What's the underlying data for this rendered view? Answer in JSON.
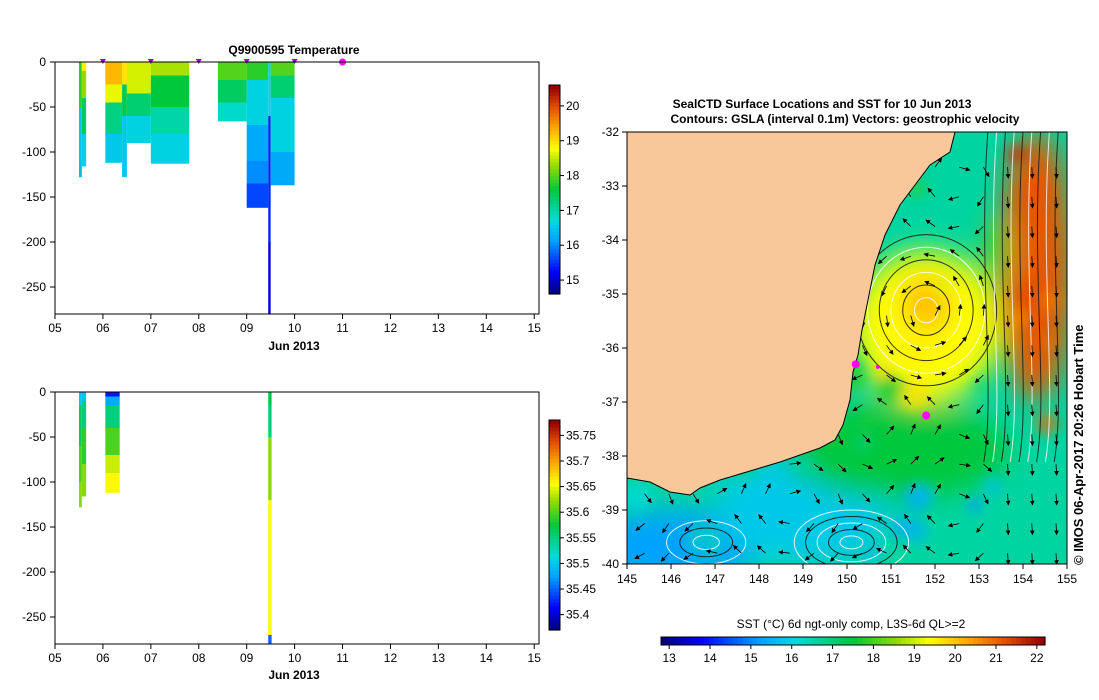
{
  "chart_data": [
    {
      "type": "heatmap",
      "title": "Q9900595  Temperature",
      "xlabel": "Jun 2013",
      "ylabel": "",
      "x_ticks": [
        "05",
        "06",
        "07",
        "08",
        "09",
        "10",
        "11",
        "12",
        "13",
        "14",
        "15"
      ],
      "xlim": [
        5,
        15.1
      ],
      "ylim": [
        -280,
        0
      ],
      "y_ticks": [
        0,
        -50,
        -100,
        -150,
        -200,
        -250
      ],
      "y_tick_labels": [
        "0",
        "-50",
        "-100",
        "-150",
        "-200",
        "-250"
      ],
      "profile_markers_day": [
        6.0,
        7.0,
        8.0,
        9.0,
        10.0
      ],
      "current_marker_day": 11.0,
      "colorbar": {
        "range": [
          14.6,
          20.6
        ],
        "ticks": [
          15,
          16,
          17,
          18,
          19,
          20
        ],
        "tick_labels": [
          "15",
          "16",
          "17",
          "18",
          "19",
          "20"
        ]
      },
      "profiles": [
        {
          "x": [
            5.5,
            5.56
          ],
          "segments": [
            [
              0,
              -50,
              17.8
            ],
            [
              -50,
              -110,
              16.5
            ],
            [
              -110,
              -128,
              16.4
            ]
          ]
        },
        {
          "x": [
            5.56,
            5.65
          ],
          "segments": [
            [
              0,
              -10,
              18.9
            ],
            [
              -10,
              -40,
              18.3
            ],
            [
              -40,
              -80,
              17.4
            ],
            [
              -80,
              -116,
              16.6
            ]
          ]
        },
        {
          "x": [
            6.05,
            6.4
          ],
          "segments": [
            [
              0,
              -25,
              19.3
            ],
            [
              -25,
              -45,
              18.7
            ],
            [
              -45,
              -80,
              17.2
            ],
            [
              -80,
              -112,
              16.5
            ]
          ]
        },
        {
          "x": [
            6.4,
            6.5
          ],
          "segments": [
            [
              0,
              -25,
              19.0
            ],
            [
              -25,
              -60,
              17.5
            ],
            [
              -60,
              -128,
              16.5
            ]
          ]
        },
        {
          "x": [
            6.5,
            7.0
          ],
          "segments": [
            [
              0,
              -35,
              18.6
            ],
            [
              -35,
              -60,
              17.3
            ],
            [
              -60,
              -90,
              16.6
            ]
          ]
        },
        {
          "x": [
            7.0,
            7.8
          ],
          "segments": [
            [
              0,
              -15,
              18.4
            ],
            [
              -15,
              -50,
              17.6
            ],
            [
              -50,
              -80,
              17.0
            ],
            [
              -80,
              -113,
              16.6
            ]
          ]
        },
        {
          "x": [
            8.4,
            9.0
          ],
          "segments": [
            [
              0,
              -20,
              18.0
            ],
            [
              -20,
              -45,
              17.4
            ],
            [
              -45,
              -66,
              16.8
            ]
          ]
        },
        {
          "x": [
            9.0,
            9.45
          ],
          "segments": [
            [
              0,
              -20,
              17.8
            ],
            [
              -20,
              -70,
              16.6
            ],
            [
              -70,
              -110,
              16.2
            ],
            [
              -110,
              -135,
              16.0
            ],
            [
              -135,
              -162,
              15.6
            ]
          ]
        },
        {
          "x": [
            9.45,
            9.5
          ],
          "segments": [
            [
              0,
              -60,
              16.6
            ],
            [
              -60,
              -200,
              15.4
            ],
            [
              -200,
              -280,
              15.0
            ]
          ]
        },
        {
          "x": [
            9.5,
            10.0
          ],
          "segments": [
            [
              0,
              -15,
              18.0
            ],
            [
              -15,
              -40,
              17.3
            ],
            [
              -40,
              -100,
              16.6
            ],
            [
              -100,
              -137,
              16.2
            ]
          ]
        }
      ]
    },
    {
      "type": "heatmap",
      "title": "",
      "xlabel": "Jun 2013",
      "ylabel": "",
      "x_ticks": [
        "05",
        "06",
        "07",
        "08",
        "09",
        "10",
        "11",
        "12",
        "13",
        "14",
        "15"
      ],
      "xlim": [
        5,
        15.1
      ],
      "ylim": [
        -280,
        0
      ],
      "y_ticks": [
        0,
        -50,
        -100,
        -150,
        -200,
        -250
      ],
      "y_tick_labels": [
        "0",
        "-50",
        "-100",
        "-150",
        "-200",
        "-250"
      ],
      "colorbar": {
        "range": [
          35.37,
          35.78
        ],
        "ticks": [
          35.4,
          35.45,
          35.5,
          35.55,
          35.6,
          35.65,
          35.7,
          35.75
        ],
        "tick_labels": [
          "35.4",
          "35.45",
          "35.5",
          "35.55",
          "35.6",
          "35.65",
          "35.7",
          "35.75"
        ]
      },
      "profiles": [
        {
          "x": [
            5.5,
            5.56
          ],
          "segments": [
            [
              0,
              -15,
              35.5
            ],
            [
              -15,
              -60,
              35.56
            ],
            [
              -60,
              -100,
              35.6
            ],
            [
              -100,
              -128,
              35.62
            ]
          ]
        },
        {
          "x": [
            5.56,
            5.65
          ],
          "segments": [
            [
              0,
              -10,
              35.5
            ],
            [
              -10,
              -40,
              35.55
            ],
            [
              -40,
              -80,
              35.59
            ],
            [
              -80,
              -116,
              35.62
            ]
          ]
        },
        {
          "x": [
            6.05,
            6.35
          ],
          "segments": [
            [
              0,
              -5,
              35.42
            ],
            [
              -5,
              -15,
              35.48
            ],
            [
              -15,
              -40,
              35.55
            ],
            [
              -40,
              -70,
              35.6
            ],
            [
              -70,
              -90,
              35.64
            ],
            [
              -90,
              -112,
              35.66
            ]
          ]
        },
        {
          "x": [
            9.45,
            9.52
          ],
          "segments": [
            [
              0,
              -15,
              35.57
            ],
            [
              -15,
              -50,
              35.55
            ],
            [
              -50,
              -120,
              35.62
            ],
            [
              -120,
              -270,
              35.66
            ],
            [
              -270,
              -280,
              35.45
            ]
          ]
        }
      ]
    },
    {
      "type": "heatmap",
      "title": "SealCTD Surface Locations and SST for 10 Jun 2013",
      "subtitle": "Contours: GSLA (interval 0.1m) Vectors: geostrophic velocity",
      "x_ticks": [
        "145",
        "146",
        "147",
        "148",
        "149",
        "150",
        "151",
        "152",
        "153",
        "154",
        "155"
      ],
      "y_ticks": [
        "-32",
        "-33",
        "-34",
        "-35",
        "-36",
        "-37",
        "-38",
        "-39",
        "-40"
      ],
      "xlim": [
        145,
        155
      ],
      "ylim": [
        -40,
        -32
      ],
      "colorbar_label": "SST (°C) 6d ngt-only comp, L3S-6d QL>=2",
      "colorbar": {
        "range": [
          12.8,
          22.2
        ],
        "ticks": [
          13,
          14,
          15,
          16,
          17,
          18,
          19,
          20,
          21,
          22
        ],
        "tick_labels": [
          "13",
          "14",
          "15",
          "16",
          "17",
          "18",
          "19",
          "20",
          "21",
          "22"
        ]
      },
      "seal_locations": [
        [
          150.2,
          -36.3
        ],
        [
          151.8,
          -37.25
        ],
        [
          150.7,
          -36.35
        ]
      ],
      "sst_fields": [
        {
          "lon": 146.0,
          "lat": -39.7,
          "r_lon": 2.0,
          "r_lat": 0.7,
          "sst": 15.2
        },
        {
          "lon": 149.0,
          "lat": -39.0,
          "r_lon": 2.0,
          "r_lat": 1.0,
          "sst": 15.8
        },
        {
          "lon": 151.2,
          "lat": -37.9,
          "r_lon": 2.5,
          "r_lat": 0.9,
          "sst": 17.5
        },
        {
          "lon": 151.8,
          "lat": -35.6,
          "r_lon": 1.7,
          "r_lat": 1.4,
          "sst": 19.4
        },
        {
          "lon": 151.8,
          "lat": -35.2,
          "r_lon": 0.5,
          "r_lat": 0.5,
          "sst": 20.2
        },
        {
          "lon": 154.3,
          "lat": -34.5,
          "r_lon": 0.8,
          "r_lat": 2.5,
          "sst": 21.2
        },
        {
          "lon": 153.4,
          "lat": -34.2,
          "r_lon": 0.3,
          "r_lat": 0.6,
          "sst": 17.8
        }
      ],
      "gsla_eddies": [
        {
          "lon": 151.8,
          "lat": -35.3,
          "r_lon": 1.6,
          "r_lat": 1.4,
          "rings": 6
        },
        {
          "lon": 150.1,
          "lat": -39.6,
          "r_lon": 1.3,
          "r_lat": 0.6,
          "rings": 5
        },
        {
          "lon": 146.8,
          "lat": -39.6,
          "r_lon": 0.9,
          "r_lat": 0.4,
          "rings": 3
        }
      ]
    }
  ],
  "credit": "© IMOS 06-Apr-2017 20:26 Hobart Time"
}
